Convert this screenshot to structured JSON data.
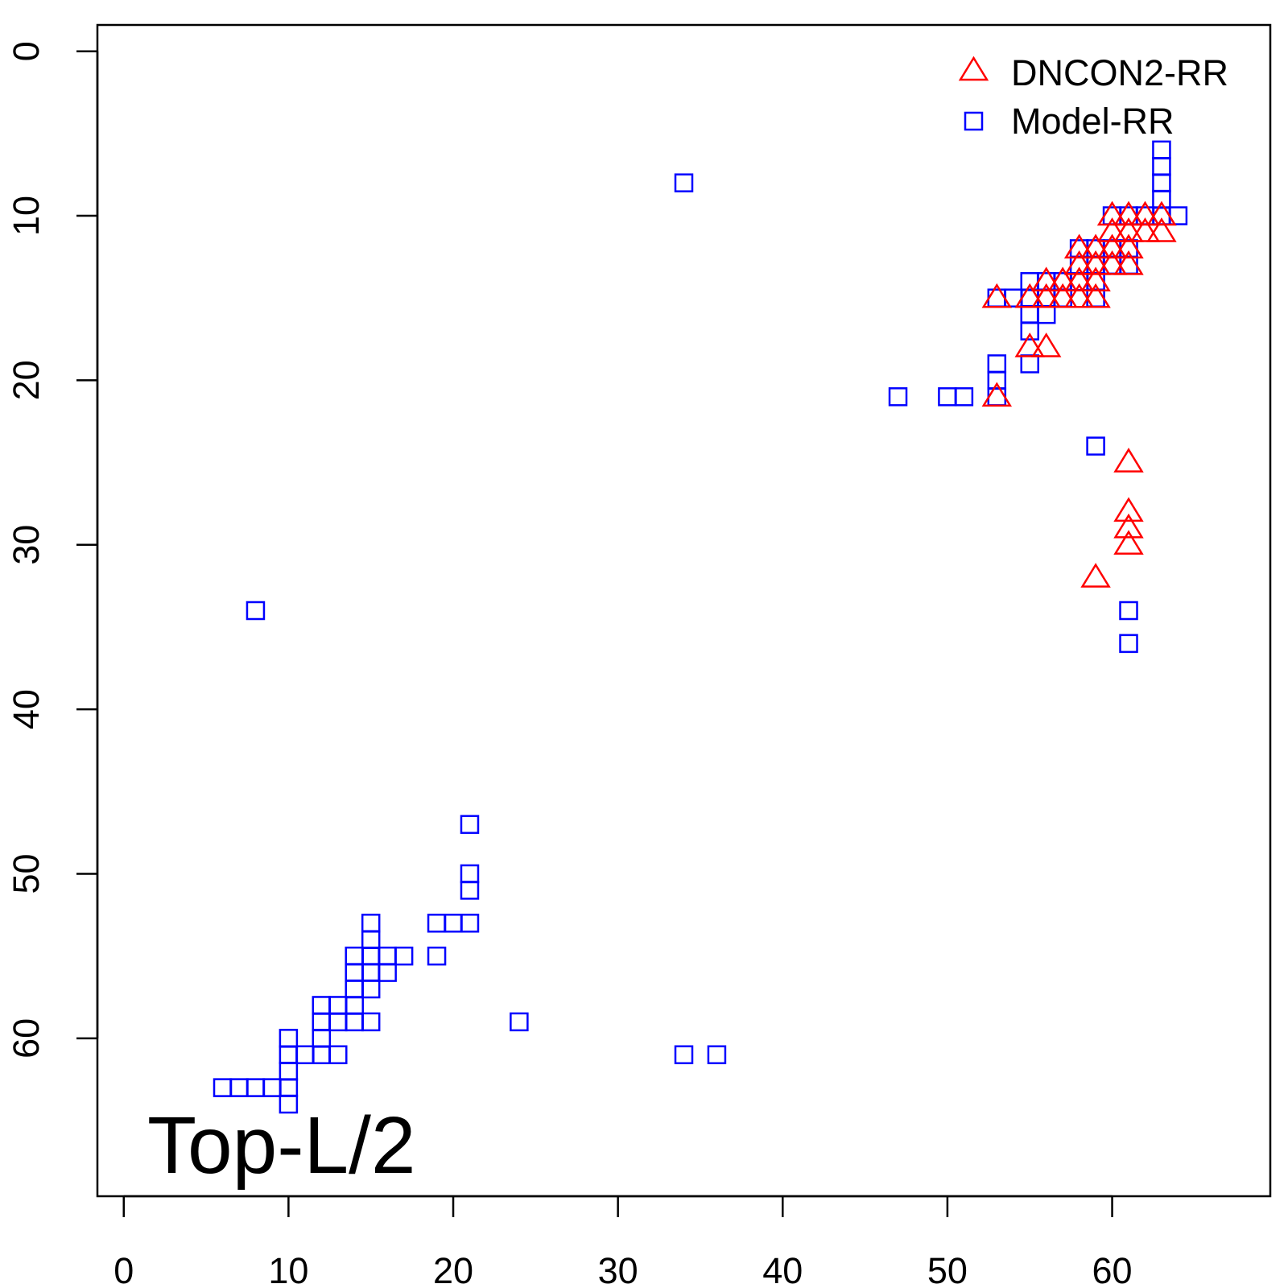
{
  "chart_data": {
    "type": "scatter",
    "title": "",
    "annotation": "Top-L/2",
    "xlabel": "",
    "ylabel": "",
    "xlim": [
      -1.6,
      69.6
    ],
    "ylim": [
      -1.6,
      69.6
    ],
    "y_reversed": true,
    "grid": false,
    "legend_position": "top-right",
    "x_ticks": [
      0,
      10,
      20,
      30,
      40,
      50,
      60
    ],
    "y_ticks": [
      0,
      10,
      20,
      30,
      40,
      50,
      60
    ],
    "series": [
      {
        "name": "DNCON2-RR",
        "marker": "triangle",
        "color": "#ff0000",
        "points": [
          [
            60,
            10
          ],
          [
            61,
            10
          ],
          [
            62,
            10
          ],
          [
            63,
            10
          ],
          [
            60,
            11
          ],
          [
            61,
            11
          ],
          [
            62,
            11
          ],
          [
            63,
            11
          ],
          [
            58,
            12
          ],
          [
            59,
            12
          ],
          [
            60,
            12
          ],
          [
            61,
            12
          ],
          [
            58,
            13
          ],
          [
            59,
            13
          ],
          [
            60,
            13
          ],
          [
            61,
            13
          ],
          [
            56,
            14
          ],
          [
            57,
            14
          ],
          [
            58,
            14
          ],
          [
            59,
            14
          ],
          [
            53,
            15
          ],
          [
            55,
            15
          ],
          [
            56,
            15
          ],
          [
            57,
            15
          ],
          [
            58,
            15
          ],
          [
            59,
            15
          ],
          [
            55,
            18
          ],
          [
            56,
            18
          ],
          [
            53,
            21
          ],
          [
            61,
            25
          ],
          [
            61,
            28
          ],
          [
            61,
            29
          ],
          [
            61,
            30
          ],
          [
            59,
            32
          ]
        ]
      },
      {
        "name": "Model-RR",
        "marker": "square",
        "color": "#0000ff",
        "points": [
          [
            63,
            6
          ],
          [
            63,
            7
          ],
          [
            63,
            8
          ],
          [
            63,
            9
          ],
          [
            60,
            10
          ],
          [
            61,
            10
          ],
          [
            62,
            10
          ],
          [
            63,
            10
          ],
          [
            64,
            10
          ],
          [
            58,
            12
          ],
          [
            59,
            12
          ],
          [
            60,
            12
          ],
          [
            61,
            12
          ],
          [
            58,
            13
          ],
          [
            59,
            13
          ],
          [
            60,
            13
          ],
          [
            61,
            13
          ],
          [
            55,
            14
          ],
          [
            56,
            14
          ],
          [
            57,
            14
          ],
          [
            58,
            14
          ],
          [
            59,
            14
          ],
          [
            53,
            15
          ],
          [
            54,
            15
          ],
          [
            55,
            15
          ],
          [
            56,
            15
          ],
          [
            57,
            15
          ],
          [
            59,
            15
          ],
          [
            55,
            16
          ],
          [
            56,
            16
          ],
          [
            55,
            17
          ],
          [
            53,
            19
          ],
          [
            55,
            19
          ],
          [
            53,
            20
          ],
          [
            53,
            21
          ],
          [
            47,
            21
          ],
          [
            50,
            21
          ],
          [
            51,
            21
          ],
          [
            59,
            24
          ],
          [
            61,
            34
          ],
          [
            61,
            36
          ],
          [
            34,
            8
          ],
          [
            8,
            34
          ],
          [
            21,
            47
          ],
          [
            21,
            50
          ],
          [
            21,
            51
          ],
          [
            19,
            53
          ],
          [
            20,
            53
          ],
          [
            21,
            53
          ],
          [
            15,
            53
          ],
          [
            15,
            54
          ],
          [
            19,
            55
          ],
          [
            14,
            55
          ],
          [
            15,
            55
          ],
          [
            16,
            55
          ],
          [
            17,
            55
          ],
          [
            14,
            56
          ],
          [
            15,
            56
          ],
          [
            16,
            56
          ],
          [
            14,
            57
          ],
          [
            15,
            57
          ],
          [
            12,
            58
          ],
          [
            13,
            58
          ],
          [
            14,
            58
          ],
          [
            12,
            59
          ],
          [
            13,
            59
          ],
          [
            14,
            59
          ],
          [
            15,
            59
          ],
          [
            24,
            59
          ],
          [
            10,
            60
          ],
          [
            12,
            60
          ],
          [
            10,
            61
          ],
          [
            11,
            61
          ],
          [
            12,
            61
          ],
          [
            13,
            61
          ],
          [
            34,
            61
          ],
          [
            36,
            61
          ],
          [
            10,
            62
          ],
          [
            6,
            63
          ],
          [
            7,
            63
          ],
          [
            8,
            63
          ],
          [
            9,
            63
          ],
          [
            10,
            63
          ],
          [
            10,
            64
          ]
        ]
      }
    ]
  }
}
